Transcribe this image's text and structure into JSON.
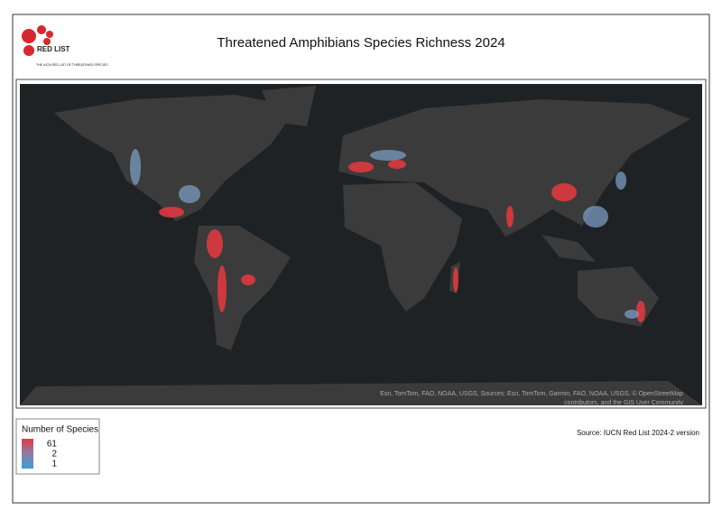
{
  "header": {
    "title": "Threatened Amphibians Species Richness 2024",
    "logo": {
      "name": "RED LIST",
      "tagline": "THE IUCN RED LIST OF THREATENED SPECIES"
    }
  },
  "map": {
    "attribution": [
      "Esri, TomTom, FAO, NOAA, USGS, Sources: Esri, TomTom, Garmin, FAO, NOAA, USGS, © OpenStreetMap",
      "contributors, and the GIS User Community"
    ]
  },
  "legend": {
    "title": "Number of Species",
    "labels": [
      61,
      2,
      1
    ]
  },
  "source": "Source: IUCN Red List 2024-2 version"
}
